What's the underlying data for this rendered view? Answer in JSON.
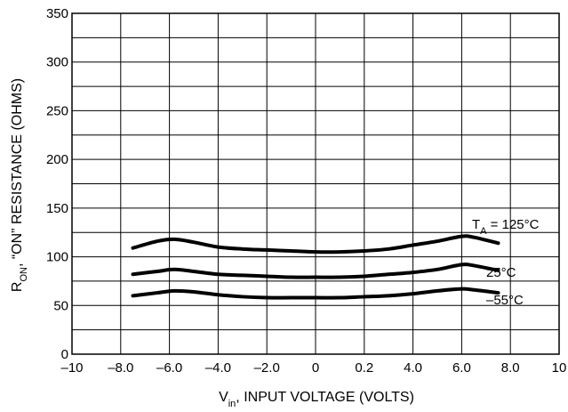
{
  "chart_data": {
    "type": "line",
    "xlabel": "V",
    "xlabel_sub": "in",
    "xlabel_rest": ", INPUT VOLTAGE (VOLTS)",
    "ylabel_main": "R",
    "ylabel_sub": "ON",
    "ylabel_rest": ", “ON” RESISTANCE (OHMS)",
    "xlim": [
      -10,
      10
    ],
    "ylim": [
      0,
      350
    ],
    "x_ticks": [
      "-10",
      "-8.0",
      "-6.0",
      "-4.0",
      "-2.0",
      "0",
      "0.2",
      "4.0",
      "6.0",
      "8.0",
      "10"
    ],
    "y_ticks": [
      "0",
      "50",
      "100",
      "150",
      "200",
      "250",
      "300",
      "350"
    ],
    "grid": true,
    "series": [
      {
        "name": "T",
        "name_sub": "A",
        "name_rest": " = 125°C",
        "x": [
          -7.5,
          -6.5,
          -5.8,
          -5,
          -4,
          -3,
          -2,
          -1,
          0,
          1,
          2,
          3,
          4,
          5,
          6,
          6.5,
          7.5
        ],
        "y": [
          109,
          116,
          118,
          115,
          110,
          108,
          107,
          106,
          105,
          105,
          106,
          108,
          112,
          116,
          121,
          120,
          114
        ]
      },
      {
        "name": "25°C",
        "x": [
          -7.5,
          -6.5,
          -5.8,
          -5,
          -4,
          -3,
          -2,
          -1,
          0,
          1,
          2,
          3,
          4,
          5,
          6,
          6.5,
          7.5
        ],
        "y": [
          82,
          85,
          87,
          85,
          82,
          81,
          80,
          79,
          79,
          79,
          80,
          82,
          84,
          87,
          92,
          91,
          86
        ]
      },
      {
        "name": "–55°C",
        "x": [
          -7.5,
          -6.5,
          -5.8,
          -5,
          -4,
          -3,
          -2,
          -1,
          0,
          1,
          2,
          3,
          4,
          5,
          6,
          6.5,
          7.5
        ],
        "y": [
          60,
          63,
          65,
          64,
          61,
          59,
          58,
          58,
          58,
          58,
          59,
          60,
          62,
          65,
          67,
          66,
          63
        ]
      }
    ]
  }
}
